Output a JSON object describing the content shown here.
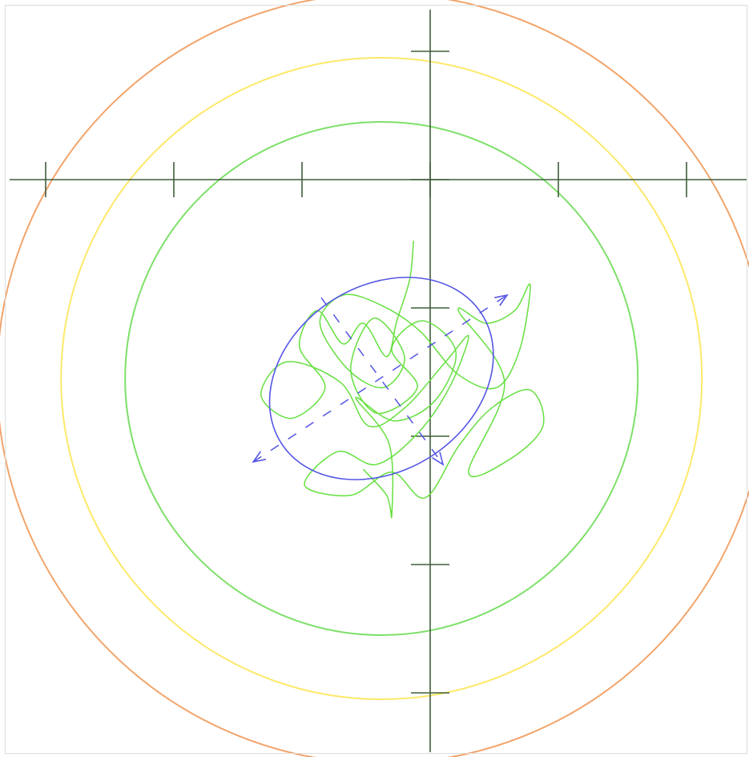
{
  "chart_data": {
    "type": "scatter",
    "title": "",
    "xlabel": "",
    "ylabel": "",
    "xlim": [
      -6.0,
      3.5
    ],
    "ylim": [
      -5.0,
      1.4
    ],
    "axis_ticks": {
      "x": [
        -3,
        -2,
        -1,
        0,
        1,
        2
      ],
      "y": [
        -4,
        -3,
        -2,
        -1,
        0,
        1
      ]
    },
    "grid": false,
    "target_center": [
      -0.38,
      -1.55
    ],
    "rings": [
      {
        "name": "green-ring",
        "radius": 2.0,
        "color": "#7ee06a"
      },
      {
        "name": "yellow-ring",
        "radius": 2.5,
        "color": "#fde96a"
      },
      {
        "name": "orange-ring",
        "radius": 3.0,
        "color": "#f2a46a"
      }
    ],
    "ellipse": {
      "center": [
        -0.38,
        -1.55
      ],
      "semi_major": 0.93,
      "semi_minor": 0.72,
      "angle_deg": 33,
      "color": "#5555e6"
    },
    "principal_axes": {
      "color": "#5555e6",
      "major": {
        "from": [
          -1.38,
          -2.2
        ],
        "to": [
          0.6,
          -0.9
        ]
      },
      "minor": {
        "from": [
          -0.85,
          -0.92
        ],
        "to": [
          0.1,
          -2.22
        ]
      }
    },
    "trace": {
      "color": "#66e040",
      "points": [
        [
          -0.13,
          -0.48
        ],
        [
          -0.16,
          -0.78
        ],
        [
          -0.26,
          -1.1
        ],
        [
          -0.34,
          -1.38
        ],
        [
          -0.52,
          -1.12
        ],
        [
          -0.68,
          -1.28
        ],
        [
          -0.88,
          -1.02
        ],
        [
          -1.02,
          -1.3
        ],
        [
          -0.82,
          -1.62
        ],
        [
          -1.08,
          -1.86
        ],
        [
          -1.32,
          -1.68
        ],
        [
          -1.12,
          -1.42
        ],
        [
          -0.7,
          -1.58
        ],
        [
          -0.48,
          -1.92
        ],
        [
          -0.2,
          -1.78
        ],
        [
          0.12,
          -1.42
        ],
        [
          0.3,
          -1.22
        ],
        [
          0.15,
          -1.62
        ],
        [
          -0.1,
          -1.98
        ],
        [
          -0.42,
          -2.22
        ],
        [
          -0.72,
          -2.12
        ],
        [
          -0.98,
          -2.38
        ],
        [
          -0.62,
          -2.46
        ],
        [
          -0.3,
          -2.28
        ],
        [
          -0.04,
          -2.48
        ],
        [
          0.22,
          -2.08
        ],
        [
          0.48,
          -1.78
        ],
        [
          0.78,
          -1.64
        ],
        [
          0.88,
          -1.92
        ],
        [
          0.62,
          -2.18
        ],
        [
          0.3,
          -2.28
        ],
        [
          0.58,
          -1.58
        ],
        [
          0.22,
          -1.02
        ],
        [
          0.44,
          -1.12
        ],
        [
          0.66,
          -1.02
        ],
        [
          0.78,
          -0.82
        ],
        [
          0.7,
          -1.32
        ],
        [
          0.52,
          -1.62
        ],
        [
          0.22,
          -1.52
        ],
        [
          -0.08,
          -1.18
        ],
        [
          -0.38,
          -0.98
        ],
        [
          -0.68,
          -0.9
        ],
        [
          -0.86,
          -1.12
        ],
        [
          -0.64,
          -1.48
        ],
        [
          -0.36,
          -1.62
        ],
        [
          -0.2,
          -1.38
        ],
        [
          -0.44,
          -1.08
        ],
        [
          -0.62,
          -1.48
        ],
        [
          -0.42,
          -1.82
        ],
        [
          -0.1,
          -1.62
        ],
        [
          -0.3,
          -1.32
        ],
        [
          -0.06,
          -1.1
        ],
        [
          0.2,
          -1.34
        ],
        [
          0.04,
          -1.72
        ],
        [
          -0.28,
          -1.88
        ],
        [
          -0.58,
          -1.7
        ],
        [
          -0.32,
          -2.06
        ],
        [
          -0.3,
          -2.62
        ],
        [
          -0.34,
          -2.46
        ],
        [
          -0.52,
          -2.26
        ]
      ]
    }
  }
}
